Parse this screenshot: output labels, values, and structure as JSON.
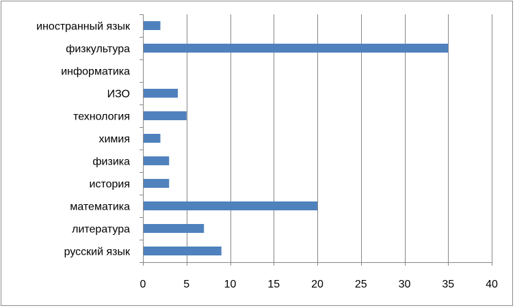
{
  "chart_data": {
    "type": "bar",
    "orientation": "horizontal",
    "title": "",
    "xlabel": "",
    "ylabel": "",
    "categories": [
      "русский язык",
      "литература",
      "математика",
      "история",
      "физика",
      "химия",
      "технология",
      "ИЗО",
      "информатика",
      "физкультура",
      "иностранный язык"
    ],
    "values": [
      9,
      7,
      20,
      3,
      3,
      2,
      5,
      4,
      0,
      35,
      2
    ],
    "xlim": [
      0,
      40
    ],
    "xticks": [
      "0",
      "5",
      "10",
      "15",
      "20",
      "25",
      "30",
      "35",
      "40"
    ],
    "grid": "vertical",
    "legend": "none",
    "bar_color": "#4f81bd",
    "grid_color": "#868686"
  }
}
